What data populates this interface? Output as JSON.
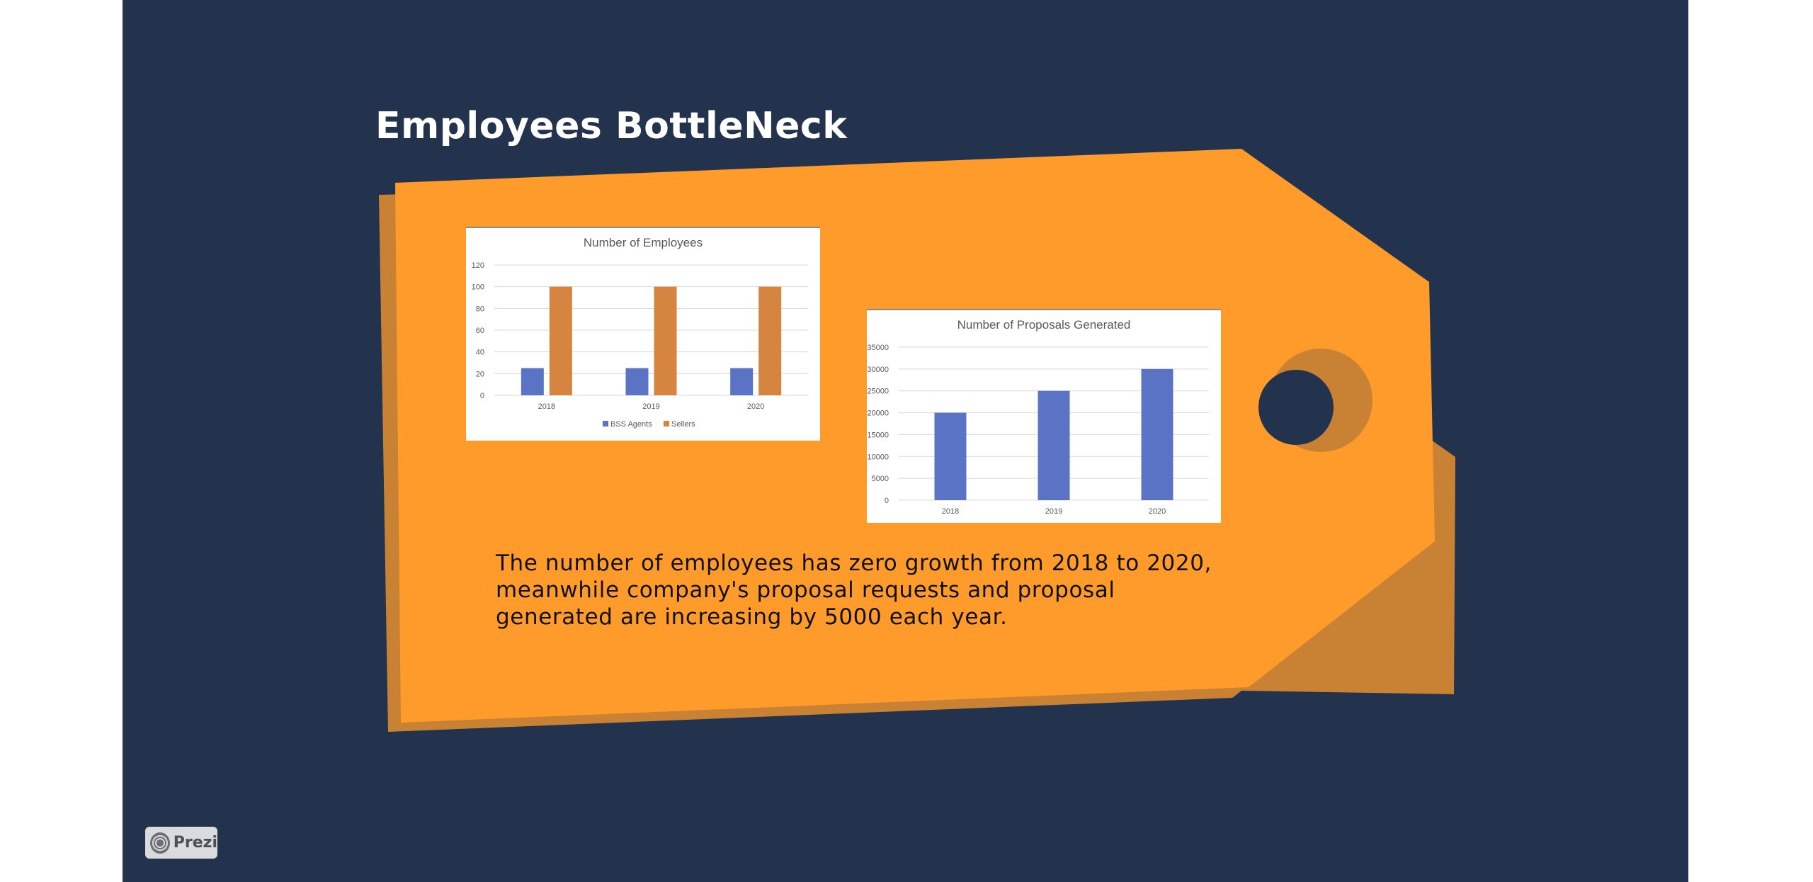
{
  "slide": {
    "title": "Employees BottleNeck",
    "body_lines": [
      "The number of employees has zero growth from 2018 to 2020,",
      "meanwhile company's proposal requests and proposal",
      "generated are increasing by 5000 each year."
    ]
  },
  "colors": {
    "background": "#23334d",
    "tag": "#ff9b2b",
    "tag_shadow": "#c98234",
    "series_blue": "#5b73c4",
    "series_orange": "#d68541"
  },
  "branding": {
    "label": "Prezi",
    "icon": "prezi-logo-icon"
  },
  "chart_data": [
    {
      "type": "bar",
      "title": "Number of Employees",
      "categories": [
        "2018",
        "2019",
        "2020"
      ],
      "series": [
        {
          "name": "BSS Agents",
          "values": [
            25,
            25,
            25
          ]
        },
        {
          "name": "Sellers",
          "values": [
            100,
            100,
            100
          ]
        }
      ],
      "yticks": [
        "0",
        "20",
        "40",
        "60",
        "80",
        "100",
        "120"
      ],
      "ylim": [
        0,
        120
      ],
      "grid": true,
      "legend": "bottom"
    },
    {
      "type": "bar",
      "title": "Number of Proposals Generated",
      "categories": [
        "2018",
        "2019",
        "2020"
      ],
      "series": [
        {
          "values": [
            20000,
            25000,
            30000
          ]
        }
      ],
      "yticks": [
        "0",
        "5000",
        "10000",
        "15000",
        "20000",
        "25000",
        "30000",
        "35000"
      ],
      "ylim": [
        0,
        35000
      ],
      "grid": true,
      "legend": "none"
    }
  ]
}
